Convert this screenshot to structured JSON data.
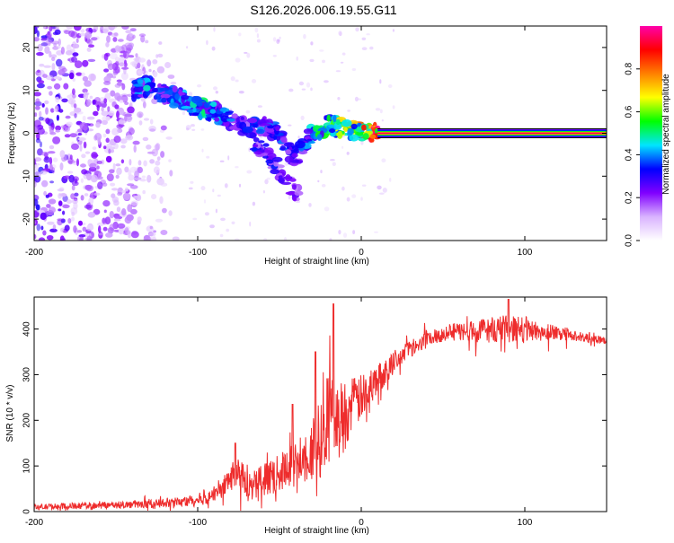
{
  "title": "S126.2026.006.19.55.G11",
  "chart_data": [
    {
      "type": "heatmap",
      "title": "S126.2026.006.19.55.G11",
      "xlabel": "Height of straight line (km)",
      "ylabel": "Frequency (Hz)",
      "xlim": [
        -200,
        150
      ],
      "ylim": [
        -25,
        25
      ],
      "x_ticks": [
        -200,
        -100,
        0,
        100
      ],
      "x_tick_labels": [
        "-200",
        "-100",
        "0",
        "100"
      ],
      "y_ticks": [
        20,
        10,
        0,
        -10,
        -20
      ],
      "y_tick_labels": [
        "20",
        "10",
        "0",
        "-10",
        "-20"
      ],
      "colorbar": {
        "label": "Normalized spectral amplitude",
        "range": [
          0,
          1
        ],
        "ticks": [
          0.0,
          0.2,
          0.4,
          0.6,
          0.8
        ],
        "tick_labels": [
          "0.0",
          "0.2",
          "0.4",
          "0.6",
          "0.8"
        ],
        "colors": [
          "#ffffff",
          "#d9b3ff",
          "#8000ff",
          "#0000ff",
          "#00e5ff",
          "#00ff00",
          "#ffff00",
          "#ff8000",
          "#ff0000",
          "#ff00aa"
        ]
      },
      "signal_track": {
        "height_km": [
          -140,
          -130,
          -120,
          -110,
          -100,
          -90,
          -80,
          -70,
          -60,
          -50,
          -45,
          -40,
          -35,
          -30,
          -25,
          -20,
          -10,
          0,
          10,
          50,
          100,
          150
        ],
        "frequency_hz": [
          10,
          11,
          9,
          8,
          6,
          5,
          3,
          1,
          2,
          0,
          -4,
          -6,
          -3,
          0,
          1,
          2,
          1,
          0.5,
          0,
          0,
          0,
          0
        ],
        "amplitude": [
          0.35,
          0.4,
          0.35,
          0.35,
          0.45,
          0.4,
          0.35,
          0.3,
          0.35,
          0.35,
          0.3,
          0.3,
          0.35,
          0.4,
          0.5,
          0.55,
          0.6,
          0.7,
          0.95,
          0.95,
          0.95,
          0.95
        ]
      },
      "secondary_track": {
        "height_km": [
          -65,
          -55,
          -45,
          -38
        ],
        "frequency_hz": [
          -2,
          -6,
          -11,
          -15
        ],
        "amplitude": [
          0.3,
          0.3,
          0.25,
          0.2
        ]
      },
      "noise_region_km": [
        -200,
        -110
      ]
    },
    {
      "type": "line",
      "xlabel": "Height of straight line (km)",
      "ylabel": "SNR (10 * v/v)",
      "xlim": [
        -200,
        150
      ],
      "ylim": [
        0,
        470
      ],
      "x_ticks": [
        -200,
        -100,
        0,
        100
      ],
      "x_tick_labels": [
        "-200",
        "-100",
        "0",
        "100"
      ],
      "y_ticks": [
        0,
        100,
        200,
        300,
        400
      ],
      "y_tick_labels": [
        "0",
        "100",
        "200",
        "300",
        "400"
      ],
      "color": "#ee2c2c",
      "series": [
        {
          "name": "SNR",
          "x": [
            -200,
            -180,
            -160,
            -140,
            -120,
            -110,
            -100,
            -90,
            -80,
            -75,
            -70,
            -60,
            -50,
            -40,
            -30,
            -25,
            -20,
            -15,
            -10,
            -5,
            0,
            10,
            20,
            30,
            40,
            50,
            60,
            70,
            80,
            90,
            100,
            110,
            120,
            130,
            140,
            150
          ],
          "y": [
            10,
            12,
            14,
            15,
            18,
            22,
            25,
            40,
            70,
            95,
            55,
            70,
            85,
            105,
            140,
            160,
            200,
            190,
            215,
            235,
            250,
            290,
            330,
            360,
            380,
            390,
            395,
            395,
            400,
            400,
            400,
            395,
            390,
            385,
            380,
            375
          ],
          "noise_amplitude": [
            6,
            7,
            8,
            8,
            10,
            12,
            14,
            18,
            30,
            40,
            30,
            35,
            40,
            50,
            70,
            90,
            110,
            90,
            80,
            60,
            50,
            35,
            25,
            20,
            18,
            18,
            20,
            25,
            30,
            30,
            28,
            22,
            15,
            12,
            10,
            8
          ]
        }
      ],
      "peaks": [
        {
          "x": -77,
          "y": 150
        },
        {
          "x": -42,
          "y": 235
        },
        {
          "x": -28,
          "y": 350
        },
        {
          "x": -17,
          "y": 455
        },
        {
          "x": 90,
          "y": 465
        }
      ]
    }
  ]
}
